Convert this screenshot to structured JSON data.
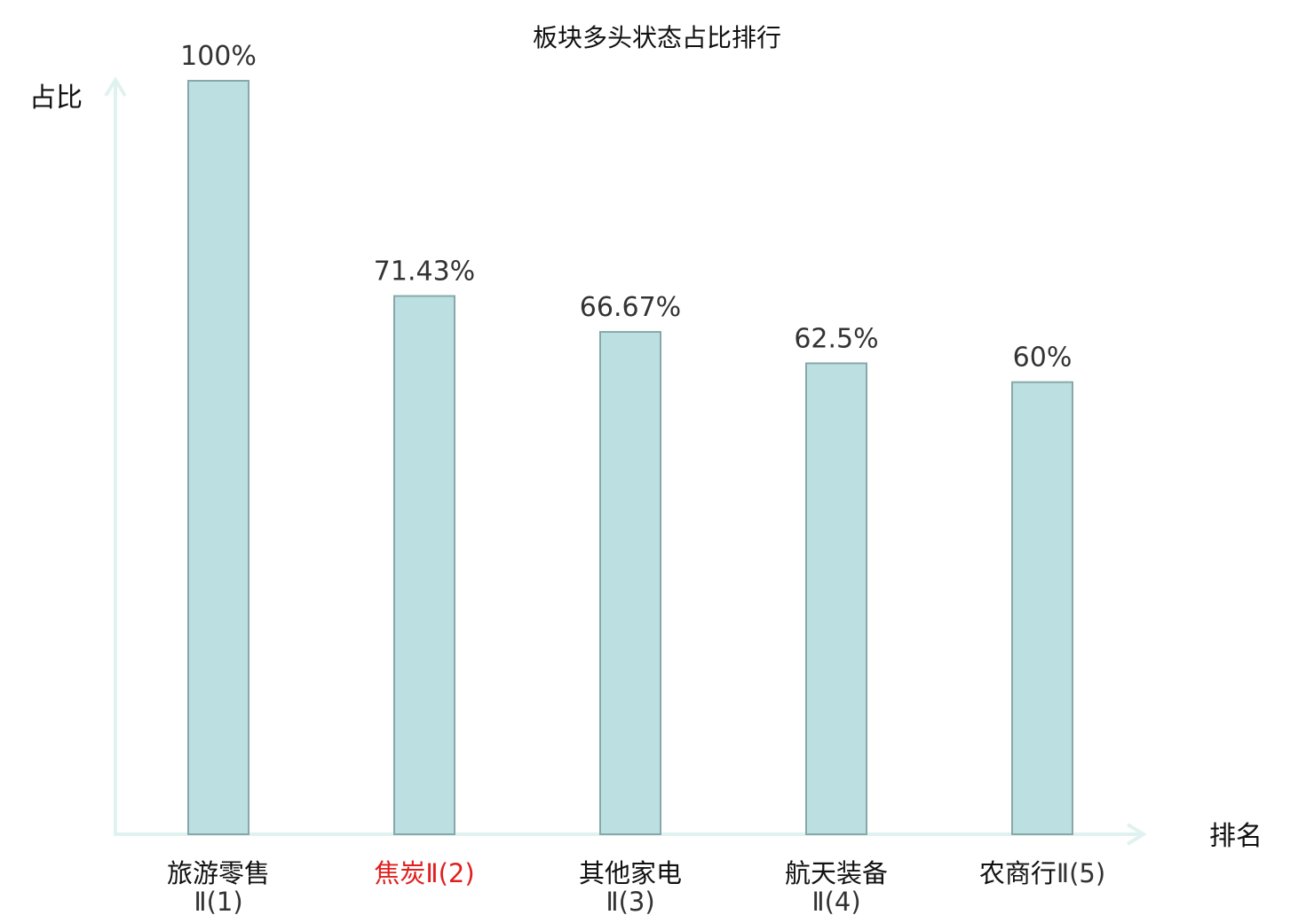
{
  "chart_data": {
    "type": "bar",
    "title": "板块多头状态占比排行",
    "ylabel": "占比",
    "xlabel": "排名",
    "ylim": [
      0,
      100
    ],
    "grid": false,
    "categories": [
      {
        "name": "旅游零售",
        "suffix": "Ⅱ(1)",
        "label": "旅游零售Ⅱ(1)"
      },
      {
        "name": "焦炭",
        "suffix": "Ⅱ(2)",
        "label": "焦炭Ⅱ(2)"
      },
      {
        "name": "其他家电",
        "suffix": "Ⅱ(3)",
        "label": "其他家电Ⅱ(3)"
      },
      {
        "name": "航天装备",
        "suffix": "Ⅱ(4)",
        "label": "航天装备Ⅱ(4)"
      },
      {
        "name": "农商行",
        "suffix": "Ⅱ(5)",
        "label": "农商行Ⅱ(5)"
      }
    ],
    "values": [
      100,
      71.43,
      66.67,
      62.5,
      60
    ],
    "value_labels": [
      "100%",
      "71.43%",
      "66.67%",
      "62.5%",
      "60%"
    ],
    "highlight_index": 1,
    "colors": {
      "bar_fill": "#bce0e2",
      "bar_stroke": "#86a8a9",
      "axis": "#e0f2f0",
      "highlight_label": "#e02020",
      "label": "#111111",
      "suffix": "#333333"
    }
  }
}
